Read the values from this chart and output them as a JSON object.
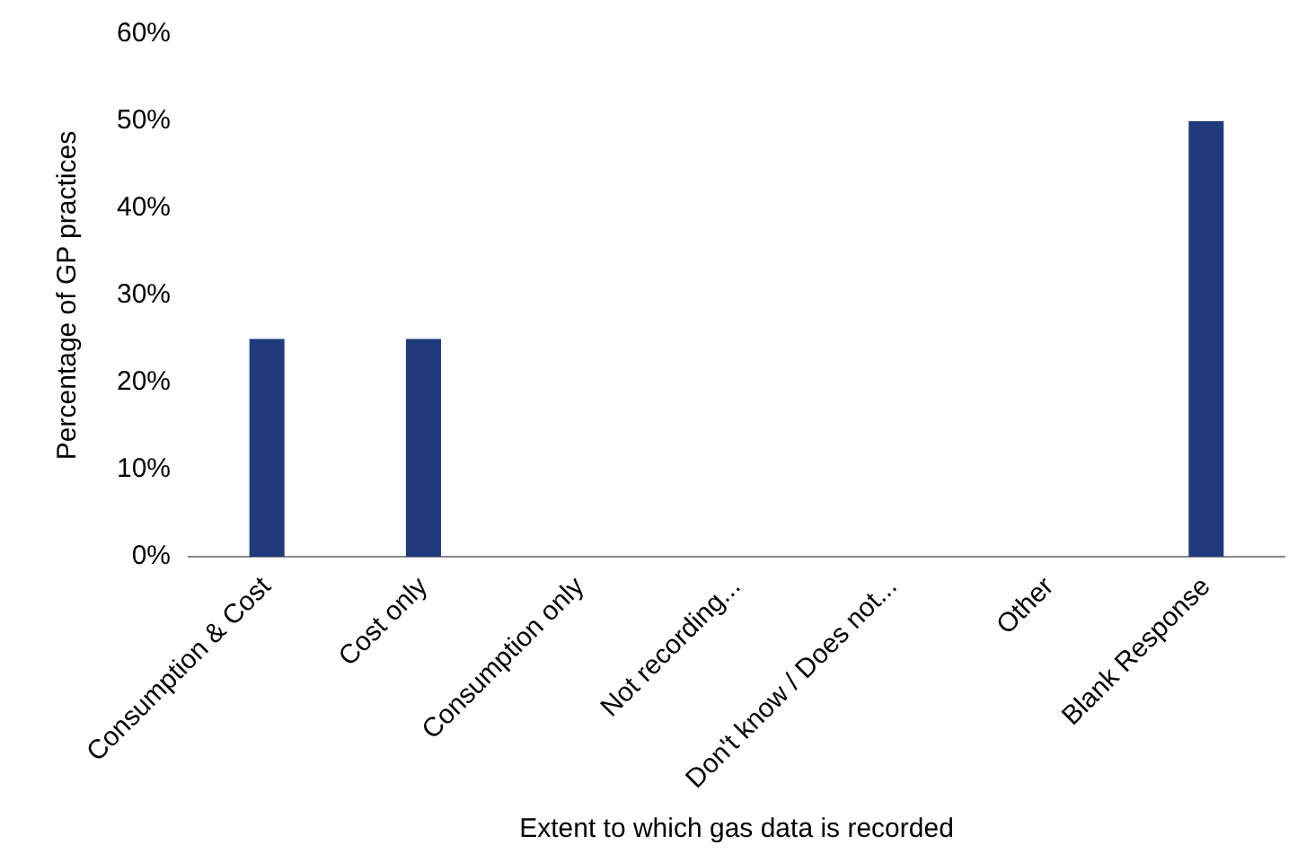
{
  "chart_data": {
    "type": "bar",
    "xlabel": "Extent to which gas data is recorded",
    "ylabel": "Percentage of GP practices",
    "categories": [
      "Consumption & Cost",
      "Cost only",
      "Consumption only",
      "Not recording...",
      "Don't know / Does not...",
      "Other",
      "Blank Response"
    ],
    "values": [
      25,
      25,
      0,
      0,
      0,
      0,
      50
    ],
    "color": "#203a7c",
    "ylim": [
      0,
      60
    ],
    "yticks": [
      {
        "value": 0,
        "label": "0%"
      },
      {
        "value": 10,
        "label": "10%"
      },
      {
        "value": 20,
        "label": "20%"
      },
      {
        "value": 30,
        "label": "30%"
      },
      {
        "value": 40,
        "label": "40%"
      },
      {
        "value": 50,
        "label": "50%"
      },
      {
        "value": 60,
        "label": "60%"
      }
    ],
    "grid": false,
    "legend": false
  }
}
